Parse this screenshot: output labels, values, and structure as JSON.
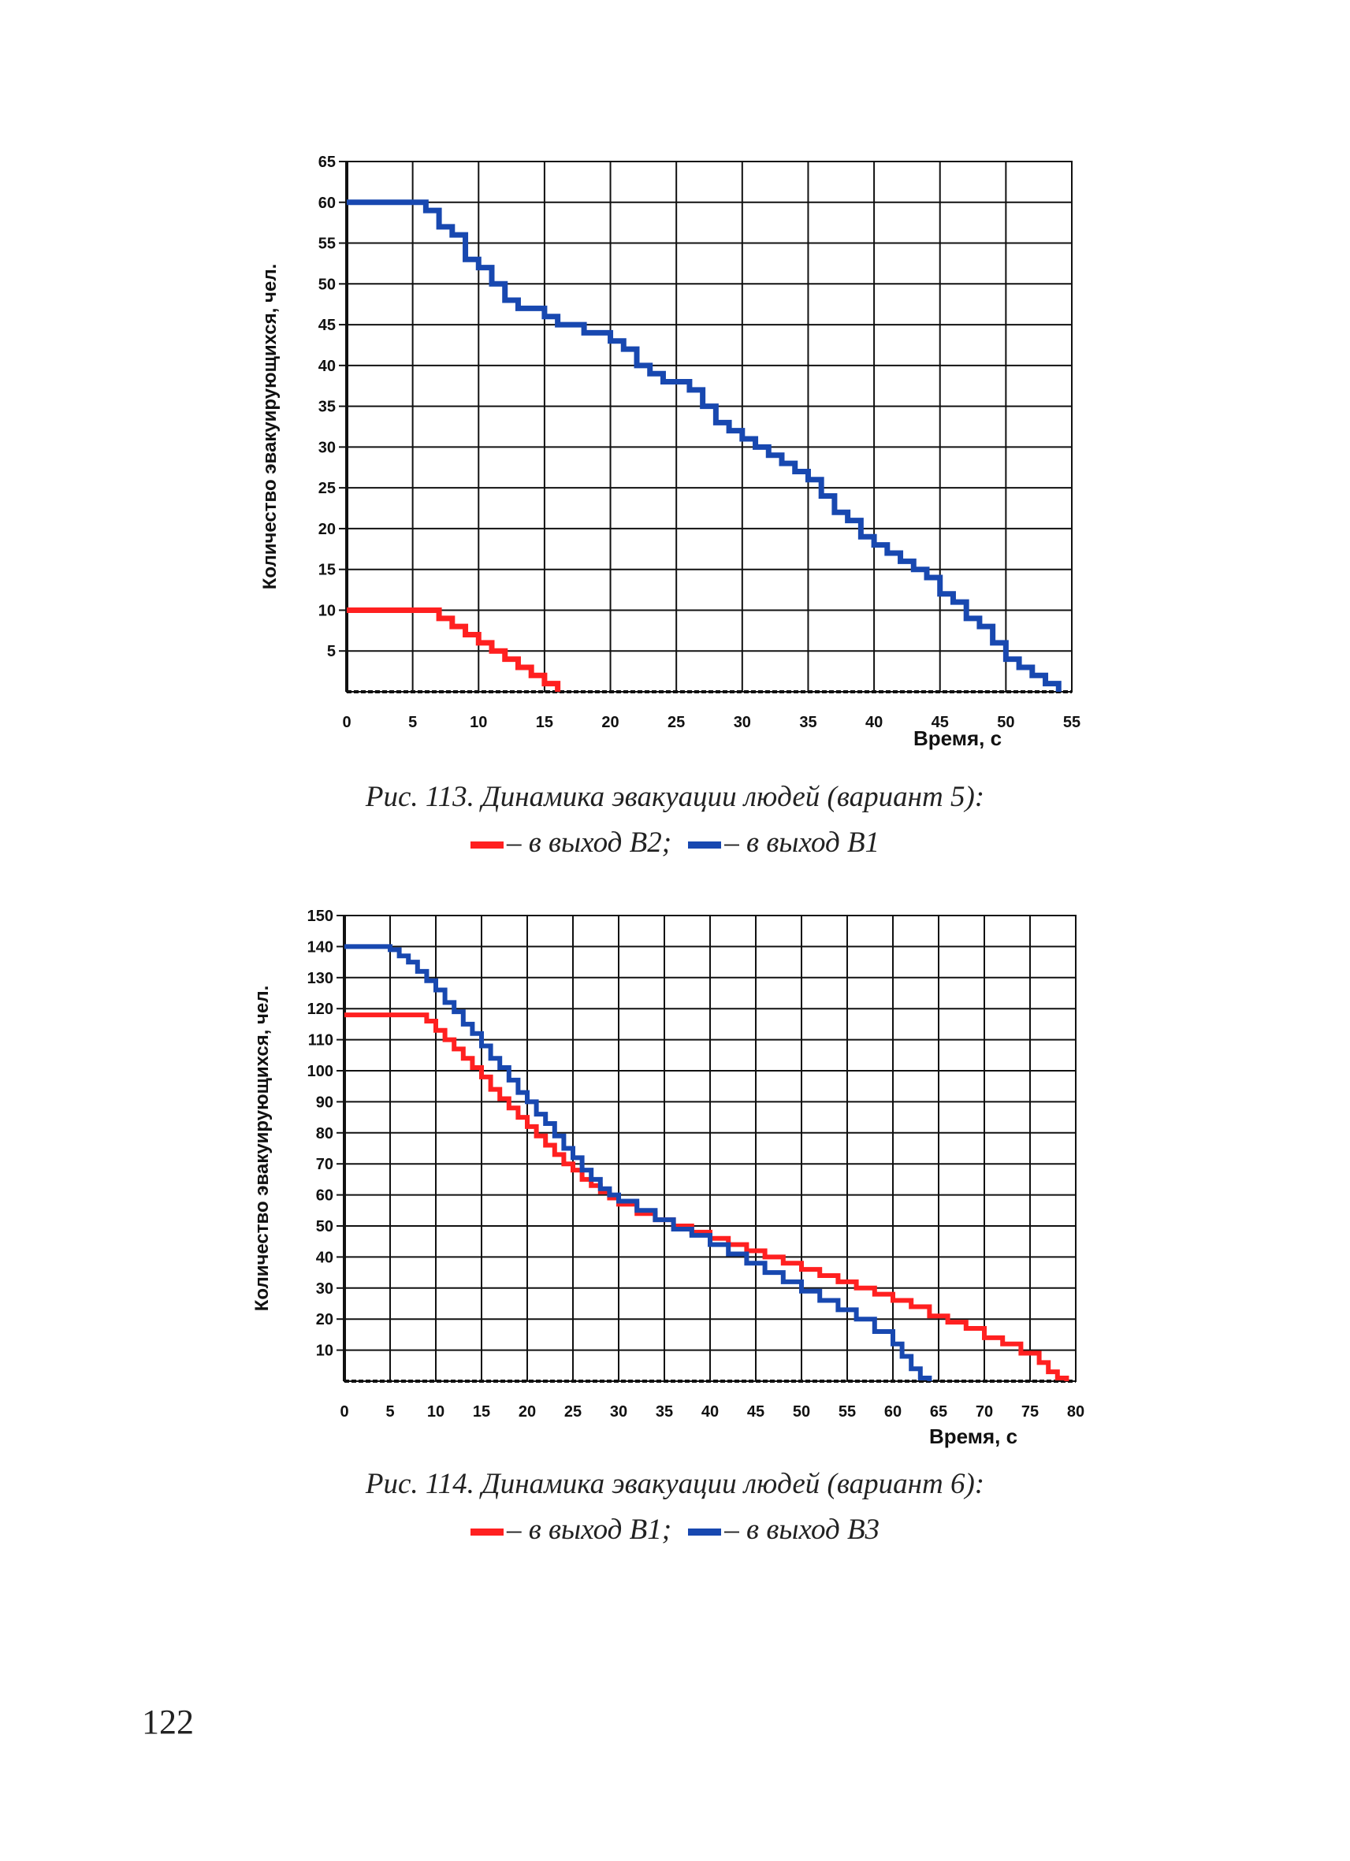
{
  "figures": [
    {
      "caption": "Рис. 113. Динамика эвакуации людей (вариант 5):",
      "legend": [
        {
          "color": "#ff2020",
          "text": "– в выход В2;"
        },
        {
          "color": "#1848b0",
          "text": "– в выход В1"
        }
      ]
    },
    {
      "caption": "Рис. 114. Динамика эвакуации людей (вариант 6):",
      "legend": [
        {
          "color": "#ff2020",
          "text": "– в выход В1;"
        },
        {
          "color": "#1848b0",
          "text": "– в выход В3"
        }
      ]
    }
  ],
  "page_number": "122",
  "chart_data": [
    {
      "type": "line",
      "title": "",
      "xlabel": "Время, с",
      "ylabel": "Количество эвакуирующихся, чел.",
      "xlim": [
        0,
        55
      ],
      "ylim": [
        0,
        65
      ],
      "xticks": [
        0,
        5,
        10,
        15,
        20,
        25,
        30,
        35,
        40,
        45,
        50,
        55
      ],
      "yticks": [
        5,
        10,
        15,
        20,
        25,
        30,
        35,
        40,
        45,
        50,
        55,
        60,
        65
      ],
      "grid": true,
      "step": true,
      "series": [
        {
          "name": "в выход В2",
          "color": "#ff2020",
          "x": [
            0,
            6,
            7,
            8,
            9,
            10,
            11,
            12,
            13,
            14,
            15
          ],
          "y": [
            10,
            10,
            9,
            8,
            7,
            6,
            5,
            4,
            3,
            2,
            1
          ]
        },
        {
          "name": "в выход В1",
          "color": "#1848b0",
          "x": [
            0,
            5,
            6,
            7,
            8,
            9,
            10,
            11,
            12,
            13,
            14,
            15,
            16,
            17,
            18,
            19,
            20,
            21,
            22,
            23,
            24,
            25,
            26,
            27,
            28,
            29,
            30,
            31,
            32,
            33,
            34,
            35,
            36,
            37,
            38,
            39,
            40,
            41,
            42,
            43,
            44,
            45,
            46,
            47,
            48,
            49,
            50,
            51,
            52,
            53
          ],
          "y": [
            60,
            60,
            59,
            57,
            56,
            53,
            52,
            50,
            48,
            47,
            47,
            46,
            45,
            45,
            44,
            44,
            43,
            42,
            40,
            39,
            38,
            38,
            37,
            35,
            33,
            32,
            31,
            30,
            29,
            28,
            27,
            26,
            24,
            22,
            21,
            19,
            18,
            17,
            16,
            15,
            14,
            12,
            11,
            9,
            8,
            6,
            4,
            3,
            2,
            1
          ]
        }
      ]
    },
    {
      "type": "line",
      "title": "",
      "xlabel": "Время, с",
      "ylabel": "Количество эвакуирующихся, чел.",
      "xlim": [
        0,
        80
      ],
      "ylim": [
        0,
        150
      ],
      "xticks": [
        0,
        5,
        10,
        15,
        20,
        25,
        30,
        35,
        40,
        45,
        50,
        55,
        60,
        65,
        70,
        75,
        80
      ],
      "yticks": [
        10,
        20,
        30,
        40,
        50,
        60,
        70,
        80,
        90,
        100,
        110,
        120,
        130,
        140,
        150
      ],
      "grid": true,
      "step": true,
      "series": [
        {
          "name": "в выход В1",
          "color": "#ff2020",
          "x": [
            0,
            8,
            9,
            10,
            11,
            12,
            13,
            14,
            15,
            16,
            17,
            18,
            19,
            20,
            21,
            22,
            23,
            24,
            25,
            26,
            27,
            28,
            29,
            30,
            32,
            34,
            36,
            38,
            40,
            42,
            44,
            46,
            48,
            50,
            52,
            54,
            56,
            58,
            60,
            62,
            64,
            66,
            68,
            70,
            72,
            74,
            76,
            77,
            78
          ],
          "y": [
            118,
            118,
            116,
            113,
            110,
            107,
            104,
            101,
            98,
            94,
            91,
            88,
            85,
            82,
            79,
            76,
            73,
            70,
            68,
            65,
            63,
            61,
            59,
            57,
            54,
            52,
            50,
            48,
            46,
            44,
            42,
            40,
            38,
            36,
            34,
            32,
            30,
            28,
            26,
            24,
            21,
            19,
            17,
            14,
            12,
            9,
            6,
            3,
            1
          ]
        },
        {
          "name": "в выход В3",
          "color": "#1848b0",
          "x": [
            0,
            4,
            5,
            6,
            7,
            8,
            9,
            10,
            11,
            12,
            13,
            14,
            15,
            16,
            17,
            18,
            19,
            20,
            21,
            22,
            23,
            24,
            25,
            26,
            27,
            28,
            29,
            30,
            32,
            34,
            36,
            38,
            40,
            42,
            44,
            46,
            48,
            50,
            52,
            54,
            56,
            58,
            60,
            61,
            62,
            63
          ],
          "y": [
            140,
            140,
            139,
            137,
            135,
            132,
            129,
            126,
            122,
            119,
            115,
            112,
            108,
            104,
            101,
            97,
            93,
            90,
            86,
            83,
            79,
            75,
            72,
            68,
            65,
            62,
            60,
            58,
            55,
            52,
            49,
            47,
            44,
            41,
            38,
            35,
            32,
            29,
            26,
            23,
            20,
            16,
            12,
            8,
            4,
            1
          ]
        }
      ]
    }
  ]
}
